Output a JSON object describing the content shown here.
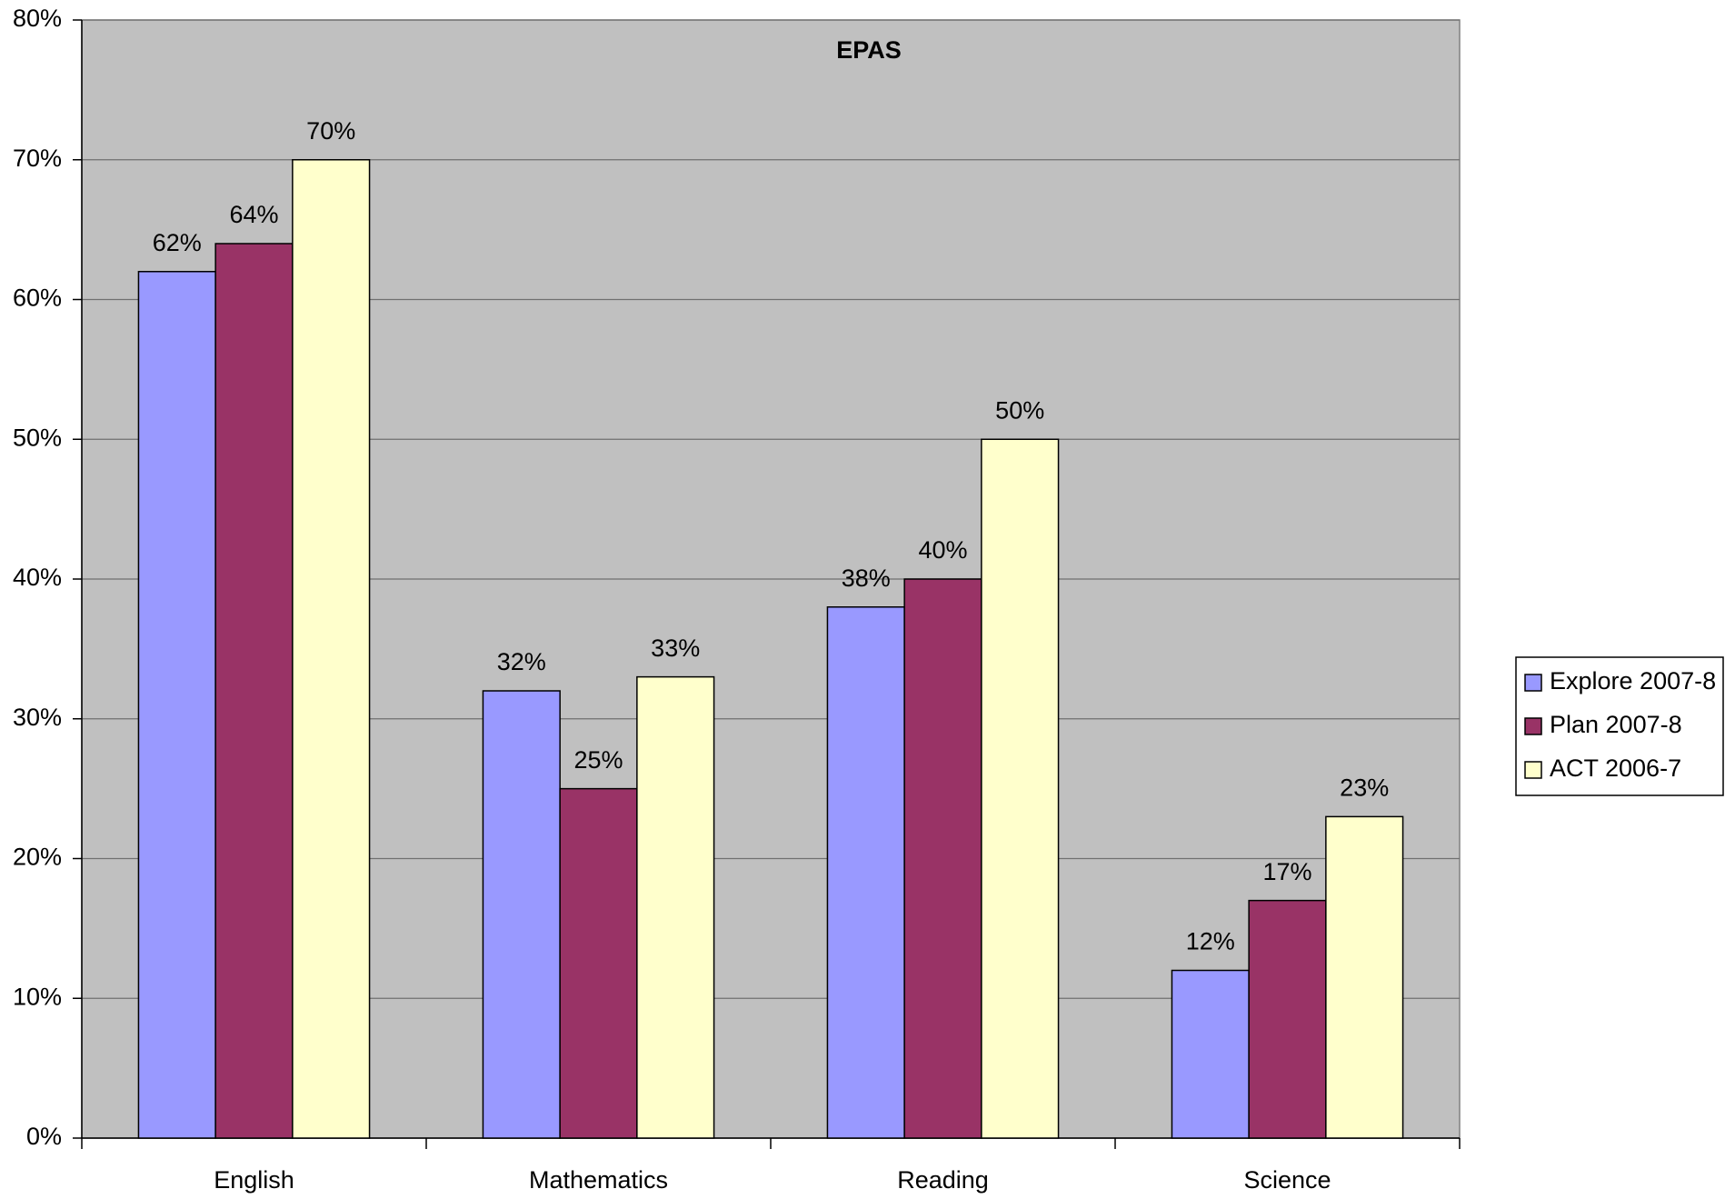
{
  "chart_data": {
    "type": "bar",
    "title": "EPAS",
    "categories": [
      "English",
      "Mathematics",
      "Reading",
      "Science"
    ],
    "series": [
      {
        "name": "Explore 2007-8",
        "color": "#9999ff",
        "values": [
          62,
          32,
          38,
          12
        ],
        "value_labels": [
          "62%",
          "32%",
          "38%",
          "12%"
        ]
      },
      {
        "name": "Plan 2007-8",
        "color": "#993366",
        "values": [
          64,
          25,
          40,
          17
        ],
        "value_labels": [
          "64%",
          "25%",
          "40%",
          "17%"
        ]
      },
      {
        "name": "ACT 2006-7",
        "color": "#ffffcc",
        "values": [
          70,
          33,
          50,
          23
        ],
        "value_labels": [
          "70%",
          "33%",
          "50%",
          "23%"
        ]
      }
    ],
    "ylim": [
      0,
      80
    ],
    "yticks": [
      {
        "value": 0,
        "label": "0%"
      },
      {
        "value": 10,
        "label": "10%"
      },
      {
        "value": 20,
        "label": "20%"
      },
      {
        "value": 30,
        "label": "30%"
      },
      {
        "value": 40,
        "label": "40%"
      },
      {
        "value": 50,
        "label": "50%"
      },
      {
        "value": 60,
        "label": "60%"
      },
      {
        "value": 70,
        "label": "70%"
      },
      {
        "value": 80,
        "label": "80%"
      }
    ],
    "grid": true,
    "legend": "right"
  }
}
